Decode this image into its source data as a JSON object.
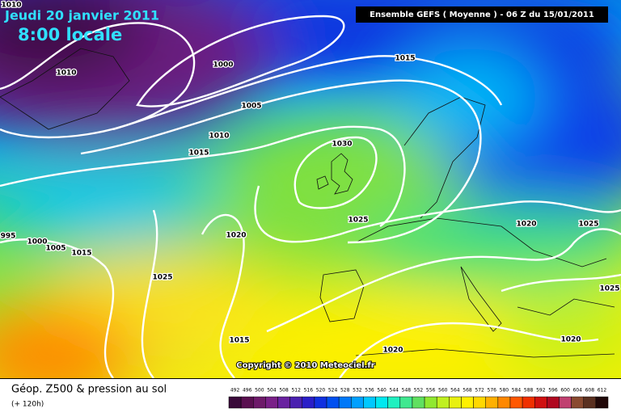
{
  "header": {
    "date": "Jeudi 20 janvier 2011",
    "time": "8:00 locale",
    "run": "Ensemble GEFS ( Moyenne )  -  06 Z du 15/01/2011"
  },
  "isobar_labels": [
    "1010",
    "1010",
    "1000",
    "1005",
    "1010",
    "1015",
    "1015",
    "1030",
    "1025",
    "1020",
    "1025",
    "1015",
    "1020",
    "1020",
    "1025",
    "1025",
    "1020",
    "995",
    "1000",
    "1005",
    "1015"
  ],
  "copyright": "Copyright © 2010 Meteociel.fr",
  "footer": {
    "title": "Géop. Z500 & pression au sol",
    "lead": "(+ 120h)"
  },
  "scale": {
    "ticks": [
      492,
      496,
      500,
      504,
      508,
      512,
      516,
      520,
      524,
      528,
      532,
      536,
      540,
      544,
      548,
      552,
      556,
      560,
      564,
      568,
      572,
      576,
      580,
      584,
      588,
      592,
      596,
      600,
      604,
      608,
      612
    ],
    "colors": [
      "#3a0a3a",
      "#5a1050",
      "#6e1a6a",
      "#7a2088",
      "#6a22a0",
      "#4a20b0",
      "#2a1ec8",
      "#1030e0",
      "#0050f0",
      "#0078f8",
      "#00a0ff",
      "#00c8ff",
      "#00e8f0",
      "#20f0c0",
      "#40e890",
      "#60e060",
      "#90e830",
      "#c0f020",
      "#e8f010",
      "#fff000",
      "#ffd800",
      "#ffb000",
      "#ff8800",
      "#ff5800",
      "#f03000",
      "#d01010",
      "#b00820",
      "#c04070",
      "#8a4a30",
      "#5a3020",
      "#200808"
    ]
  }
}
